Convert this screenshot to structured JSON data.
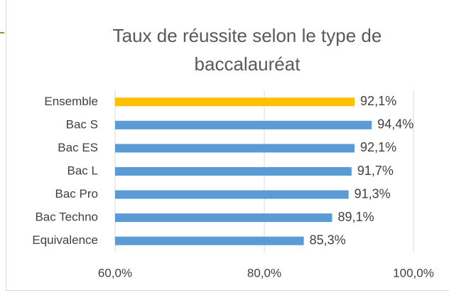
{
  "chart_data": {
    "type": "barh",
    "title": "Taux de réussite selon le type de baccalauréat",
    "categories": [
      "Ensemble",
      "Bac S",
      "Bac ES",
      "Bac L",
      "Bac Pro",
      "Bac Techno",
      "Equivalence"
    ],
    "values": [
      92.1,
      94.4,
      92.1,
      91.7,
      91.3,
      89.1,
      85.3
    ],
    "value_labels": [
      "92,1%",
      "94,4%",
      "92,1%",
      "91,7%",
      "91,3%",
      "89,1%",
      "85,3%"
    ],
    "colors": [
      "#ffc000",
      "#5b9bd5",
      "#5b9bd5",
      "#5b9bd5",
      "#5b9bd5",
      "#5b9bd5",
      "#5b9bd5"
    ],
    "xlim": [
      60,
      100
    ],
    "xticks": [
      {
        "value": 60,
        "label": "60,0%"
      },
      {
        "value": 80,
        "label": "80,0%"
      },
      {
        "value": 100,
        "label": "100,0%"
      }
    ],
    "grid": true
  }
}
